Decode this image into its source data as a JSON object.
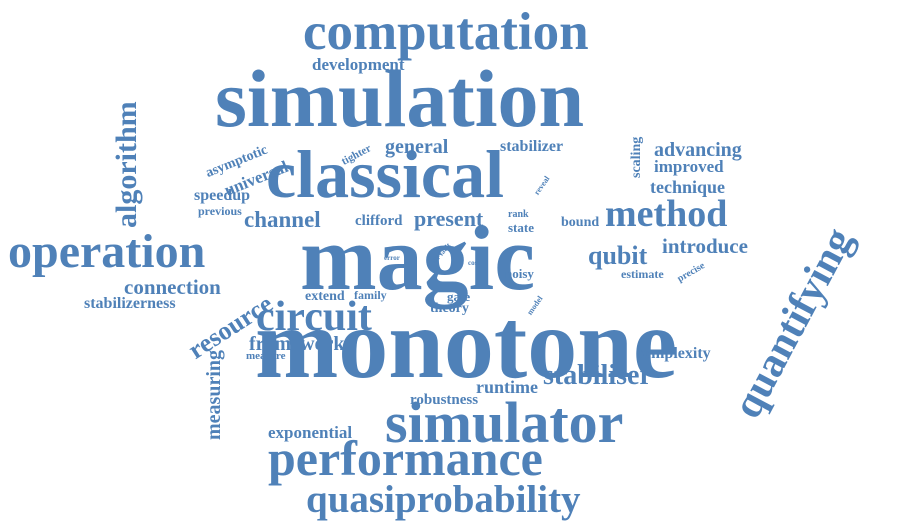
{
  "colors": {
    "word": "#4f81b8",
    "background": "#ffffff"
  },
  "words": {
    "computation": "computation",
    "development": "development",
    "simulation": "simulation",
    "algorithm": "algorithm",
    "asymptotic": "asymptotic",
    "universal": "universal",
    "tighter": "tighter",
    "general": "general",
    "stabilizer": "stabilizer",
    "advancing": "advancing",
    "improved": "improved",
    "classical": "classical",
    "scaling": "scaling",
    "reveal": "reveal",
    "technique": "technique",
    "speedup": "speedup",
    "previous": "previous",
    "channel": "channel",
    "clifford": "clifford",
    "present": "present",
    "rank": "rank",
    "state": "state",
    "bound": "bound",
    "method": "method",
    "quantifying": "quantifying",
    "operation": "operation",
    "magic": "magic",
    "introduce": "introduce",
    "qubit": "qubit",
    "error": "error",
    "type": "type",
    "fault": "fault",
    "cost": "cost",
    "noisy": "noisy",
    "estimate": "estimate",
    "precise": "precise",
    "connection": "connection",
    "resource": "resource",
    "extend": "extend",
    "family": "family",
    "gate": "gate",
    "model": "model",
    "stabilizerness": "stabilizerness",
    "theory": "theory",
    "circuit": "circuit",
    "monotone": "monotone",
    "measuring": "measuring",
    "framework": "framework",
    "measure": "measure",
    "complexity": "complexity",
    "stabiliser": "stabiliser",
    "runtime": "runtime",
    "robustness": "robustness",
    "simulator": "simulator",
    "exponential": "exponential",
    "performance": "performance",
    "quasiprobability": "quasiprobability"
  }
}
